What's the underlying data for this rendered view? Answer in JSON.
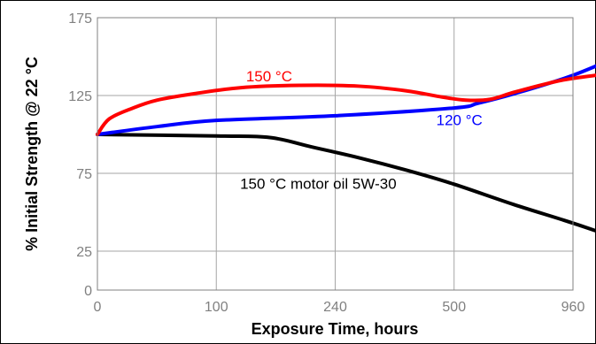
{
  "chart_data": {
    "type": "line",
    "title": "",
    "xlabel": "Exposure Time, hours",
    "ylabel": "% Initial Strength @ 22 °C",
    "x_tick_labels": [
      "0",
      "100",
      "240",
      "500",
      "960"
    ],
    "y_ticks": [
      0,
      25,
      75,
      125,
      175
    ],
    "ylim": [
      0,
      175
    ],
    "grid": true,
    "legend": "none",
    "series": [
      {
        "name": "150 °C",
        "color": "#ff0000",
        "points": [
          [
            0,
            100
          ],
          [
            0.1,
            110
          ],
          [
            0.3,
            117
          ],
          [
            0.5,
            122
          ],
          [
            0.8,
            126
          ],
          [
            1.2,
            130
          ],
          [
            1.7,
            131.5
          ],
          [
            2.2,
            131
          ],
          [
            2.6,
            128
          ],
          [
            2.9,
            124
          ],
          [
            3.1,
            122
          ],
          [
            3.3,
            122.5
          ],
          [
            3.5,
            127
          ],
          [
            3.8,
            133
          ],
          [
            4.0,
            136
          ],
          [
            4.5,
            141
          ]
        ],
        "label_at": [
          1.25,
          134
        ]
      },
      {
        "name": "120 °C",
        "color": "#0000ff",
        "points": [
          [
            0,
            100
          ],
          [
            0.5,
            105
          ],
          [
            1.0,
            109
          ],
          [
            2.0,
            112
          ],
          [
            3.0,
            117
          ],
          [
            3.2,
            120
          ],
          [
            3.5,
            126
          ],
          [
            4.0,
            138
          ],
          [
            4.5,
            154
          ]
        ],
        "label_at": [
          2.85,
          106
        ]
      },
      {
        "name": "150 °C motor oil 5W-30",
        "color": "#000000",
        "points": [
          [
            0,
            100
          ],
          [
            1.0,
            99
          ],
          [
            1.45,
            98
          ],
          [
            1.8,
            92
          ],
          [
            2.2,
            85
          ],
          [
            2.6,
            77
          ],
          [
            3.0,
            68
          ],
          [
            3.5,
            55
          ],
          [
            4.0,
            43
          ],
          [
            4.5,
            30
          ]
        ],
        "label_at": [
          1.2,
          65
        ]
      }
    ]
  }
}
